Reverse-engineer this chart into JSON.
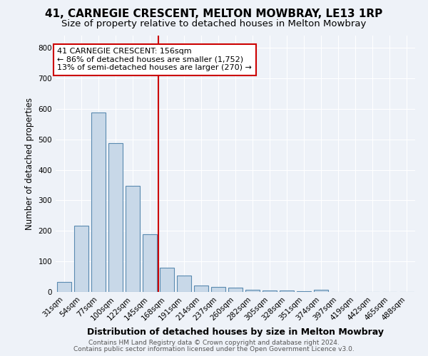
{
  "title1": "41, CARNEGIE CRESCENT, MELTON MOWBRAY, LE13 1RP",
  "title2": "Size of property relative to detached houses in Melton Mowbray",
  "xlabel": "Distribution of detached houses by size in Melton Mowbray",
  "ylabel": "Number of detached properties",
  "bin_labels": [
    "31sqm",
    "54sqm",
    "77sqm",
    "100sqm",
    "122sqm",
    "145sqm",
    "168sqm",
    "191sqm",
    "214sqm",
    "237sqm",
    "260sqm",
    "282sqm",
    "305sqm",
    "328sqm",
    "351sqm",
    "374sqm",
    "397sqm",
    "419sqm",
    "442sqm",
    "465sqm",
    "488sqm"
  ],
  "bar_heights": [
    32,
    218,
    587,
    488,
    348,
    190,
    80,
    53,
    20,
    17,
    15,
    7,
    4,
    4,
    3,
    8,
    0,
    0,
    0,
    0,
    0
  ],
  "bar_color": "#c8d8e8",
  "bar_edgecolor": "#5a8ab0",
  "vline_x": 5.5,
  "vline_color": "#cc0000",
  "annotation_line1": "41 CARNEGIE CRESCENT: 156sqm",
  "annotation_line2": "← 86% of detached houses are smaller (1,752)",
  "annotation_line3": "13% of semi-detached houses are larger (270) →",
  "annotation_box_color": "white",
  "annotation_box_edgecolor": "#cc0000",
  "ylim": [
    0,
    840
  ],
  "yticks": [
    0,
    100,
    200,
    300,
    400,
    500,
    600,
    700,
    800
  ],
  "footer1": "Contains HM Land Registry data © Crown copyright and database right 2024.",
  "footer2": "Contains public sector information licensed under the Open Government Licence v3.0.",
  "bg_color": "#eef2f8",
  "plot_bg_color": "#eef2f8",
  "grid_color": "white",
  "title1_fontsize": 11,
  "title2_fontsize": 9.5,
  "xlabel_fontsize": 9,
  "ylabel_fontsize": 8.5,
  "annot_fontsize": 8,
  "tick_fontsize": 7.5,
  "footer_fontsize": 6.5
}
